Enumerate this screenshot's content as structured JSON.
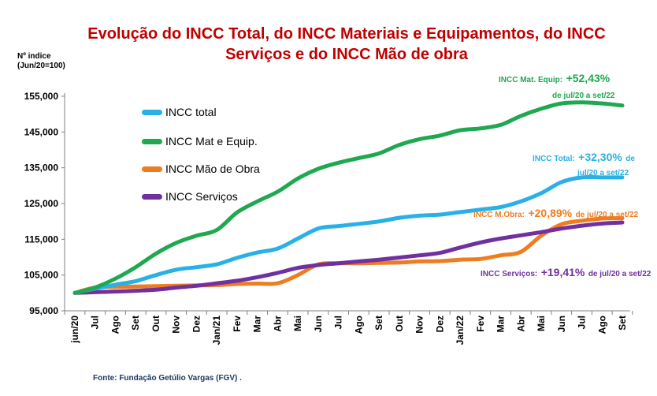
{
  "header": {
    "title_line1": "Evolução do INCC Total, do INCC Materiais e Equipamentos, do INCC",
    "title_line2": "Serviços e do INCC Mão de obra",
    "ylabel_line1": "Nº indice",
    "ylabel_line2": "(Jun/20=100)"
  },
  "footer": {
    "source": "Fonte: Fundação Getúlio Vargas (FGV) ."
  },
  "legend": [
    {
      "label": "INCC total",
      "color": "#29b0e6"
    },
    {
      "label": "INCC Mat e Equip.",
      "color": "#1fa84f"
    },
    {
      "label": "INCC Mão de Obra",
      "color": "#ee7d22"
    },
    {
      "label": "INCC Serviços",
      "color": "#7030a0"
    }
  ],
  "annotations": {
    "mat": {
      "name": "INCC Mat. Equip:",
      "value": "+52,43%",
      "period": "de jul/20 a set/22",
      "color": "#1fa84f"
    },
    "total": {
      "name": "INCC Total:",
      "value": "+32,30%",
      "de": "de",
      "period": "jul/20 a set/22",
      "color": "#29b0e6"
    },
    "mo": {
      "name": "INCC M.Obra:",
      "value": "+20,89%",
      "period": "de jul/20 a set/22",
      "color": "#ee7d22"
    },
    "serv": {
      "name": "INCC Serviços:",
      "value": "+19,41%",
      "period": "de jul/20 a set/22",
      "color": "#7030a0"
    }
  },
  "chart_data": {
    "type": "line",
    "title": "Evolução do INCC Total, do INCC Materiais e Equipamentos, do INCC Serviços e do INCC Mão de obra",
    "ylabel": "Nº indice (Jun/20=100)",
    "ylim": [
      95000,
      155000
    ],
    "yticks": [
      "95,000",
      "105,000",
      "115,000",
      "125,000",
      "135,000",
      "145,000",
      "155,000"
    ],
    "ytick_values": [
      95000,
      105000,
      115000,
      125000,
      135000,
      145000,
      155000
    ],
    "categories": [
      "jun/20",
      "Jul",
      "Ago",
      "Set",
      "Out",
      "Nov",
      "Dez",
      "Jan/21",
      "Fev",
      "Mar",
      "Abr",
      "Mai",
      "Jun",
      "Jul",
      "Ago",
      "Set",
      "Out",
      "Nov",
      "Dez",
      "Jan/22",
      "Fev",
      "Mar",
      "Abr",
      "Mai",
      "Jun",
      "Jul",
      "Ago",
      "Set"
    ],
    "series": [
      {
        "name": "INCC total",
        "color": "#29b0e6",
        "values": [
          100000,
          101200,
          102300,
          103300,
          105000,
          106500,
          107200,
          108000,
          109800,
          111300,
          112400,
          115200,
          118000,
          118700,
          119300,
          120000,
          121000,
          121600,
          121900,
          122600,
          123300,
          124000,
          125600,
          127900,
          131000,
          132300,
          132300,
          132300
        ]
      },
      {
        "name": "INCC Mat e Equip.",
        "color": "#1fa84f",
        "values": [
          100000,
          101500,
          104000,
          107200,
          111000,
          114000,
          116000,
          117600,
          122500,
          125600,
          128300,
          132000,
          134700,
          136400,
          137700,
          139000,
          141400,
          143000,
          144000,
          145500,
          146000,
          147000,
          149500,
          151500,
          153000,
          153300,
          153000,
          152400
        ]
      },
      {
        "name": "INCC Mão de Obra",
        "color": "#ee7d22",
        "values": [
          100000,
          101500,
          101700,
          101800,
          101900,
          102000,
          102100,
          102200,
          102500,
          102600,
          102700,
          105000,
          108000,
          108300,
          108300,
          108400,
          108500,
          108800,
          108900,
          109300,
          109500,
          110500,
          111500,
          116000,
          119200,
          120200,
          120800,
          120900
        ]
      },
      {
        "name": "INCC Serviços",
        "color": "#7030a0",
        "values": [
          100000,
          100200,
          100400,
          100600,
          100900,
          101500,
          102000,
          102700,
          103400,
          104400,
          105600,
          107000,
          107800,
          108300,
          108800,
          109300,
          109900,
          110500,
          111200,
          112700,
          114100,
          115200,
          116100,
          117000,
          118000,
          118800,
          119400,
          119700
        ]
      }
    ],
    "grid": false,
    "legend_position": "upper-left inside plot"
  }
}
